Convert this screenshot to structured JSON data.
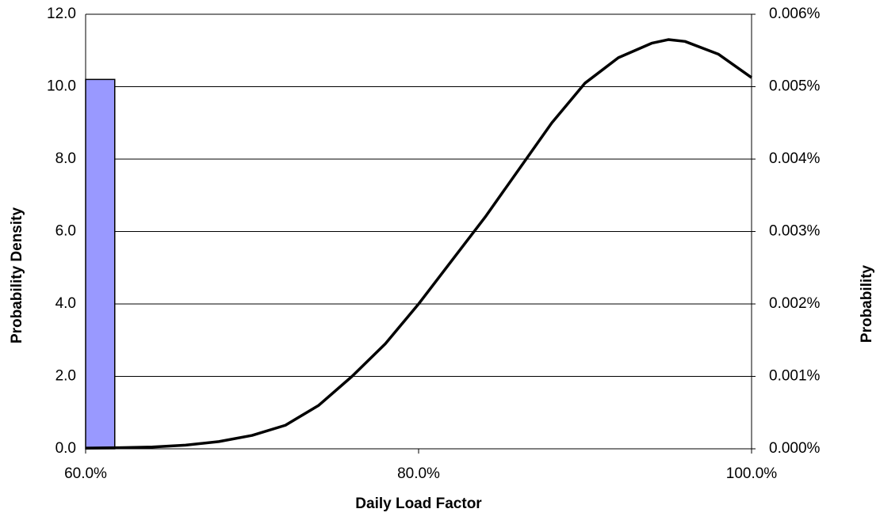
{
  "chart_data": {
    "type": "line",
    "x_label": "Daily Load Factor",
    "y_label": "Probability Density",
    "y2_label": "Probability",
    "xlim": [
      60,
      100
    ],
    "xticks": [
      {
        "value": 60,
        "label": "60.0%"
      },
      {
        "value": 80,
        "label": "80.0%"
      },
      {
        "value": 100,
        "label": "100.0%"
      }
    ],
    "ylim": [
      0,
      12
    ],
    "yticks": [
      {
        "value": 0,
        "label": "0.0"
      },
      {
        "value": 2,
        "label": "2.0"
      },
      {
        "value": 4,
        "label": "4.0"
      },
      {
        "value": 6,
        "label": "6.0"
      },
      {
        "value": 8,
        "label": "8.0"
      },
      {
        "value": 10,
        "label": "10.0"
      },
      {
        "value": 12,
        "label": "12.0"
      }
    ],
    "y2lim": [
      0,
      0.006
    ],
    "y2ticks": [
      {
        "value": 0,
        "label": "0.000%"
      },
      {
        "value": 0.001,
        "label": "0.001%"
      },
      {
        "value": 0.002,
        "label": "0.002%"
      },
      {
        "value": 0.003,
        "label": "0.003%"
      },
      {
        "value": 0.004,
        "label": "0.004%"
      },
      {
        "value": 0.005,
        "label": "0.005%"
      },
      {
        "value": 0.006,
        "label": "0.006%"
      }
    ],
    "grid": true,
    "bars": {
      "bins": [
        60,
        61.75
      ],
      "values": [
        0.0051
      ],
      "axis": "y2",
      "color": "#9999ff"
    },
    "x": [
      60,
      62,
      64,
      66,
      68,
      70,
      72,
      74,
      76,
      78,
      80,
      82,
      84,
      86,
      88,
      90,
      92,
      94,
      95,
      96,
      98,
      100
    ],
    "series": [
      {
        "color": "#000000",
        "values": [
          0.02,
          0.03,
          0.05,
          0.1,
          0.2,
          0.37,
          0.65,
          1.2,
          2.0,
          2.9,
          4.0,
          5.2,
          6.4,
          7.7,
          9.0,
          10.1,
          10.8,
          11.2,
          11.3,
          11.25,
          10.9,
          10.25
        ]
      }
    ]
  }
}
